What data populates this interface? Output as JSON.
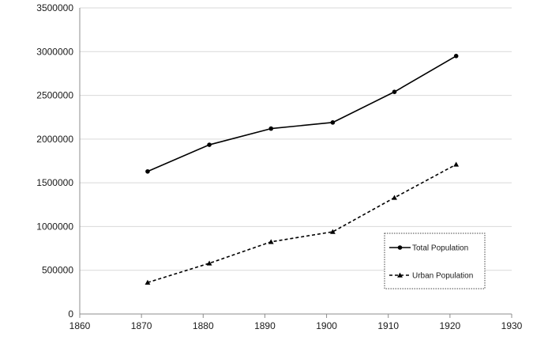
{
  "chart_data": {
    "type": "line",
    "title": "",
    "xlabel": "",
    "ylabel": "",
    "xlim": [
      1860,
      1930
    ],
    "ylim": [
      0,
      3500000
    ],
    "x_ticks": [
      "1860",
      "1870",
      "1880",
      "1890",
      "1900",
      "1910",
      "1920",
      "1930"
    ],
    "y_ticks": [
      "0",
      "500000",
      "1000000",
      "1500000",
      "2000000",
      "2500000",
      "3000000",
      "3500000"
    ],
    "grid": "horizontal",
    "legend_position": "bottom-right",
    "series": [
      {
        "name": "Total Population",
        "line_style": "solid",
        "marker": "circle",
        "color": "#000000",
        "points": [
          {
            "x": 1871,
            "y": 1630000
          },
          {
            "x": 1881,
            "y": 1935000
          },
          {
            "x": 1891,
            "y": 2120000
          },
          {
            "x": 1901,
            "y": 2190000
          },
          {
            "x": 1911,
            "y": 2540000
          },
          {
            "x": 1921,
            "y": 2950000
          }
        ]
      },
      {
        "name": "Urban Population",
        "line_style": "dashed",
        "marker": "triangle",
        "color": "#000000",
        "points": [
          {
            "x": 1871,
            "y": 360000
          },
          {
            "x": 1881,
            "y": 580000
          },
          {
            "x": 1891,
            "y": 825000
          },
          {
            "x": 1901,
            "y": 940000
          },
          {
            "x": 1911,
            "y": 1330000
          },
          {
            "x": 1921,
            "y": 1710000
          }
        ]
      }
    ]
  }
}
